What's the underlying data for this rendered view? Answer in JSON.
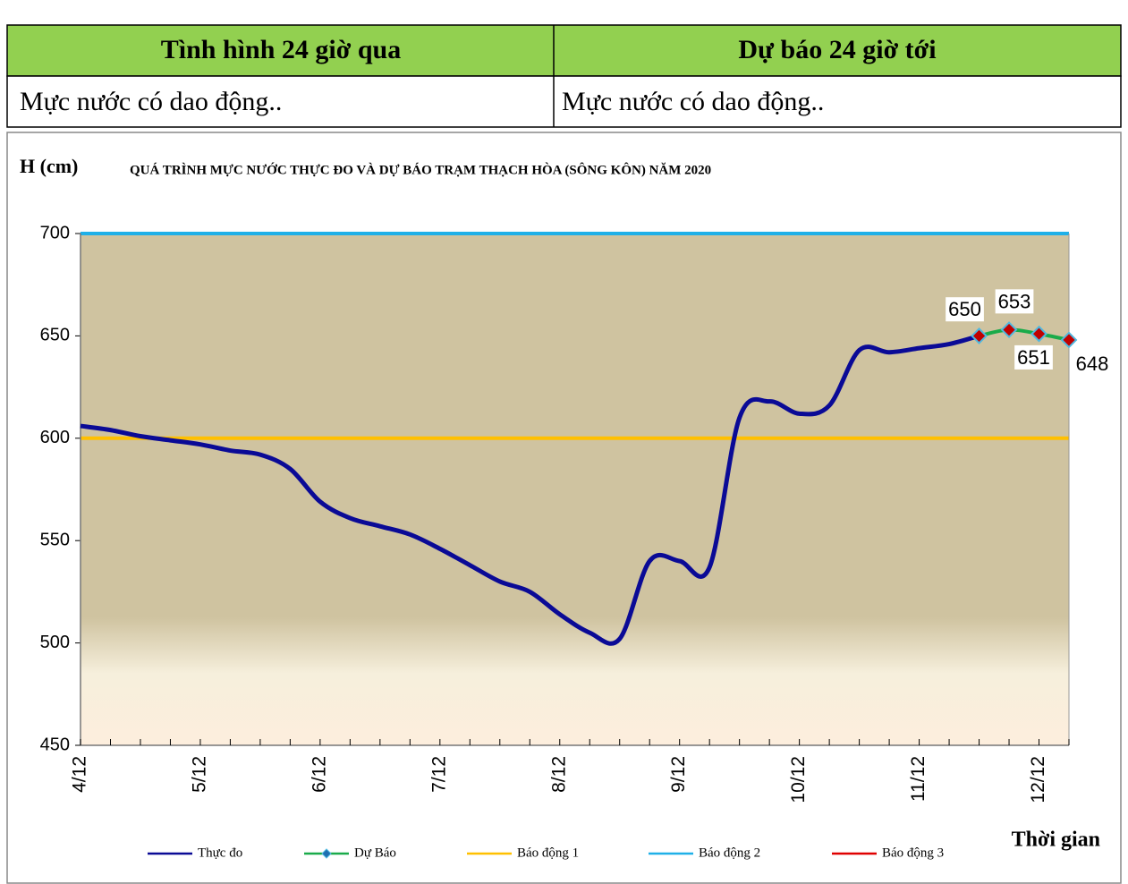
{
  "table": {
    "headers": [
      "Tình hình 24 giờ qua",
      "Dự báo 24 giờ tới"
    ],
    "rows": [
      [
        "Mực nước có dao động..",
        "Mực nước có dao động.."
      ]
    ]
  },
  "chart_data": {
    "type": "line",
    "title": "QUÁ TRÌNH MỰC NƯỚC THỰC ĐO VÀ DỰ BÁO TRẠM THẠCH HÒA (SÔNG KÔN) NĂM 2020",
    "y_label": "H (cm)",
    "x_label": "Thời gian",
    "categories": [
      "4/12",
      null,
      null,
      null,
      "5/12",
      null,
      null,
      null,
      "6/12",
      null,
      null,
      null,
      "7/12",
      null,
      null,
      null,
      "8/12",
      null,
      null,
      null,
      "9/12",
      null,
      null,
      null,
      "10/12",
      null,
      null,
      null,
      "11/12",
      null,
      null,
      null,
      "12/12",
      null
    ],
    "series": [
      {
        "name": "Thực đo",
        "color": "#0a0a96",
        "values": [
          606,
          604,
          601,
          599,
          597,
          594,
          592,
          585,
          569,
          561,
          557,
          553,
          546,
          538,
          530,
          525,
          514,
          505,
          502,
          540,
          540,
          537,
          610,
          618,
          612,
          616,
          643,
          642,
          644,
          646,
          650,
          null,
          null,
          null
        ]
      },
      {
        "name": "Dự Báo",
        "color": "#1aab4a",
        "marker_color": "#c00000",
        "values": [
          null,
          null,
          null,
          null,
          null,
          null,
          null,
          null,
          null,
          null,
          null,
          null,
          null,
          null,
          null,
          null,
          null,
          null,
          null,
          null,
          null,
          null,
          null,
          null,
          null,
          null,
          null,
          null,
          null,
          null,
          650,
          653,
          651,
          648
        ],
        "show_value_labels": true
      }
    ],
    "alarm_lines": [
      {
        "name": "Báo động 1",
        "color": "#ffc000",
        "value": 600
      },
      {
        "name": "Báo động 2",
        "color": "#1fb0e8",
        "value": 700
      },
      {
        "name": "Báo động 3",
        "color": "#e00000"
      }
    ],
    "ylim": [
      450,
      700
    ],
    "yticks": [
      450,
      500,
      550,
      600,
      650,
      700
    ]
  }
}
